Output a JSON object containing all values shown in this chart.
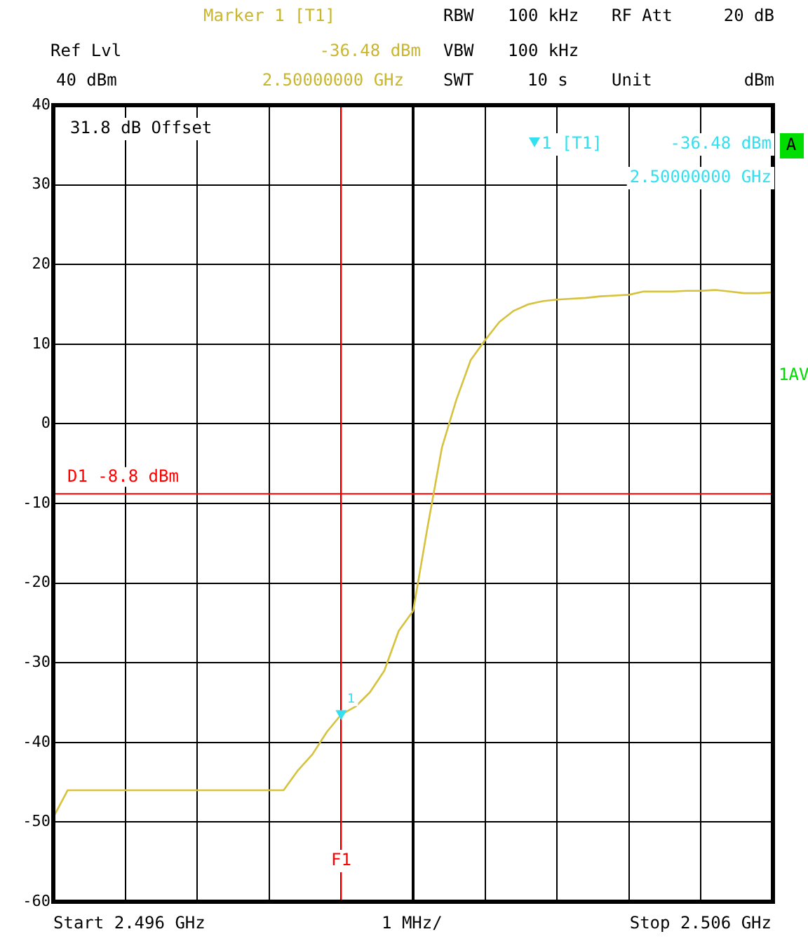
{
  "chart_data": {
    "type": "line",
    "categories": [
      null,
      null,
      null,
      null,
      null,
      null,
      null,
      null,
      null,
      null,
      null,
      null,
      null,
      null,
      null,
      null,
      null,
      null,
      null,
      null,
      null,
      null,
      null,
      null,
      null,
      null,
      null,
      null,
      null,
      null,
      null,
      null,
      null,
      null,
      null,
      null,
      null,
      null,
      null,
      null,
      null,
      null,
      null,
      null,
      null,
      null,
      null,
      null,
      null,
      null,
      null
    ],
    "series": [
      {
        "color": "#d6c23c",
        "values": [
          -49.4,
          -46,
          -46,
          -46,
          -46,
          -46,
          -46,
          -46,
          -46,
          -46,
          -46,
          -46,
          -46,
          -46,
          -46,
          -46,
          -46,
          -43.5,
          -41.5,
          -38.7,
          -36.5,
          -35.5,
          -33.7,
          -31,
          -26,
          -23.5,
          -13,
          -3,
          3,
          8,
          10.5,
          12.8,
          14.2,
          15,
          15.4,
          15.6,
          15.7,
          15.8,
          16,
          16.1,
          16.2,
          16.6,
          16.6,
          16.6,
          16.7,
          16.7,
          16.8,
          16.6,
          16.4,
          16.4,
          16.5
        ]
      }
    ],
    "ylim": [
      -60,
      40
    ],
    "yticks": [
      -60,
      -50,
      -40,
      -30,
      -20,
      -10,
      0,
      10,
      20,
      30,
      40
    ],
    "tick_labels": "y",
    "grid": true,
    "ref_lines": [
      {
        "axis": "y",
        "value": -8.8,
        "label": "D1 -8.8 dBm",
        "color": "#ff0000"
      },
      {
        "axis": "x",
        "label": "F1",
        "color": "#ff0000"
      }
    ],
    "annotations": [
      "Marker 1 [T1]",
      "-36.48 dBm",
      "2.50000000 GHz",
      "RBW",
      "100 kHz",
      "RF Att",
      "20 dB",
      "Ref Lvl",
      "VBW",
      "100 kHz",
      "40 dBm",
      "SWT",
      "10 s",
      "Unit",
      "dBm",
      "31.8 dB Offset",
      "1 [T1]",
      "-36.48 dBm",
      "2.50000000 GHz",
      "A",
      "1AV",
      "Start 2.496 GHz",
      "1 MHz/",
      "Stop 2.506 GHz",
      {
        "text": "1",
        "y": -36.48
      }
    ]
  }
}
